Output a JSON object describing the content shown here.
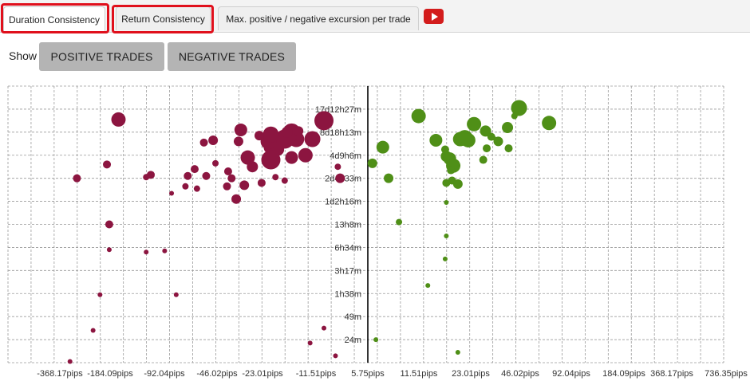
{
  "tabs": [
    {
      "label": "Duration Consistency",
      "active": true
    },
    {
      "label": "Return Consistency",
      "active": false
    },
    {
      "label": "Max. positive / negative excursion per trade",
      "active": false
    }
  ],
  "video_icon": "youtube-play-icon",
  "show_label": "Show",
  "buttons": {
    "positive": "POSITIVE TRADES",
    "negative": "NEGATIVE TRADES"
  },
  "colors": {
    "negative": "#8c1540",
    "positive": "#4f8f17",
    "highlight": "#e0101c",
    "grid": "#9a9a9a",
    "axis": "#000000"
  },
  "chart_data": {
    "type": "scatter",
    "x_ticks": [
      "-368.17pips",
      "-184.09pips",
      "-92.04pips",
      "-46.02pips",
      "-23.01pips",
      "-11.51pips",
      "5.75pips",
      "11.51pips",
      "23.01pips",
      "46.02pips",
      "92.04pips",
      "184.09pips",
      "368.17pips",
      "736.35pips"
    ],
    "y_ticks": [
      "17d12h27m",
      "8d18h13m",
      "4d9h6m",
      "2d4h33m",
      "1d2h16m",
      "13h8m",
      "6h34m",
      "3h17m",
      "1h38m",
      "49m",
      "24m"
    ],
    "grid": true,
    "series": [
      {
        "color_key": "negative",
        "points": [
          [
            -1.9,
            1.5,
            12
          ],
          [
            -2.4,
            2.3,
            10
          ],
          [
            -3.1,
            2.3,
            10
          ],
          [
            -3.3,
            2.0,
            11
          ],
          [
            -3.0,
            1.95,
            6
          ],
          [
            -3.6,
            2.3,
            12
          ],
          [
            -3.5,
            2.0,
            7
          ],
          [
            -3.9,
            2.75,
            8
          ],
          [
            -4.2,
            2.65,
            9
          ],
          [
            -4.3,
            2.4,
            10
          ],
          [
            -4.2,
            2.1,
            10
          ],
          [
            -4.2,
            3.2,
            12
          ],
          [
            -3.3,
            3.1,
            8
          ],
          [
            -2.7,
            3.0,
            9
          ],
          [
            -4.7,
            2.15,
            6
          ],
          [
            -5.5,
            1.9,
            8
          ],
          [
            -5.6,
            2.4,
            6
          ],
          [
            -5.2,
            3.1,
            9
          ],
          [
            -5.0,
            3.5,
            7
          ],
          [
            -6.7,
            2.35,
            6
          ],
          [
            -6.6,
            3.35,
            4
          ],
          [
            -7.1,
            2.45,
            5
          ],
          [
            -7.5,
            3.6,
            5
          ],
          [
            -6.05,
            3.7,
            5
          ],
          [
            -5.35,
            4.3,
            6
          ],
          [
            -6.1,
            4.35,
            5
          ],
          [
            -7.0,
            3.9,
            5
          ],
          [
            -5.9,
            4.0,
            5
          ],
          [
            -7.4,
            4.45,
            4
          ],
          [
            -7.9,
            4.35,
            4
          ],
          [
            -7.8,
            3.9,
            5
          ],
          [
            -3.6,
            4.1,
            4
          ],
          [
            -4.0,
            3.95,
            4
          ],
          [
            -4.6,
            4.2,
            5
          ],
          [
            -5.7,
            4.9,
            6
          ],
          [
            -8.5,
            4.65,
            3
          ],
          [
            -9.4,
            3.85,
            5
          ],
          [
            -9.6,
            3.95,
            4
          ],
          [
            -10.8,
            1.45,
            9
          ],
          [
            -11.3,
            3.4,
            5
          ],
          [
            -11.2,
            6.0,
            5
          ],
          [
            -12.6,
            4.0,
            5
          ],
          [
            -8.8,
            7.15,
            3
          ],
          [
            -9.6,
            7.2,
            3
          ],
          [
            -11.2,
            7.1,
            3
          ],
          [
            -8.3,
            9.05,
            3
          ],
          [
            -11.6,
            9.05,
            3
          ],
          [
            -11.9,
            10.6,
            3
          ],
          [
            -1.9,
            10.5,
            3
          ],
          [
            -2.5,
            11.15,
            3
          ],
          [
            -1.4,
            11.7,
            3
          ],
          [
            -12.9,
            11.95,
            3
          ],
          [
            -1.3,
            3.5,
            4
          ],
          [
            -1.2,
            4.0,
            6
          ]
        ]
      },
      {
        "color_key": "positive",
        "points": [
          [
            0.2,
            3.35,
            6
          ],
          [
            0.65,
            2.65,
            8
          ],
          [
            0.9,
            4.0,
            6
          ],
          [
            1.35,
            5.9,
            4
          ],
          [
            2.2,
            1.3,
            9
          ],
          [
            2.95,
            2.35,
            8
          ],
          [
            3.35,
            2.75,
            5
          ],
          [
            3.4,
            3.05,
            7
          ],
          [
            3.55,
            3.15,
            8
          ],
          [
            3.7,
            3.45,
            9
          ],
          [
            3.4,
            4.2,
            5
          ],
          [
            3.65,
            4.1,
            5
          ],
          [
            3.9,
            4.25,
            6
          ],
          [
            3.6,
            3.65,
            5
          ],
          [
            4.0,
            2.3,
            9
          ],
          [
            4.2,
            2.25,
            10
          ],
          [
            4.35,
            2.35,
            9
          ],
          [
            4.6,
            1.65,
            9
          ],
          [
            5.1,
            1.95,
            7
          ],
          [
            5.35,
            2.2,
            5
          ],
          [
            5.15,
            2.7,
            5
          ],
          [
            5.45,
            2.25,
            3
          ],
          [
            5.0,
            3.2,
            5
          ],
          [
            5.65,
            2.4,
            6
          ],
          [
            6.05,
            1.8,
            7
          ],
          [
            6.35,
            1.3,
            4
          ],
          [
            6.55,
            0.95,
            10
          ],
          [
            7.85,
            1.6,
            9
          ],
          [
            6.1,
            2.7,
            5
          ],
          [
            3.4,
            5.05,
            3
          ],
          [
            3.4,
            6.5,
            3
          ],
          [
            3.35,
            7.5,
            3
          ],
          [
            2.6,
            8.65,
            3
          ],
          [
            3.9,
            11.55,
            3
          ],
          [
            0.35,
            11.0,
            3
          ]
        ]
      }
    ]
  }
}
